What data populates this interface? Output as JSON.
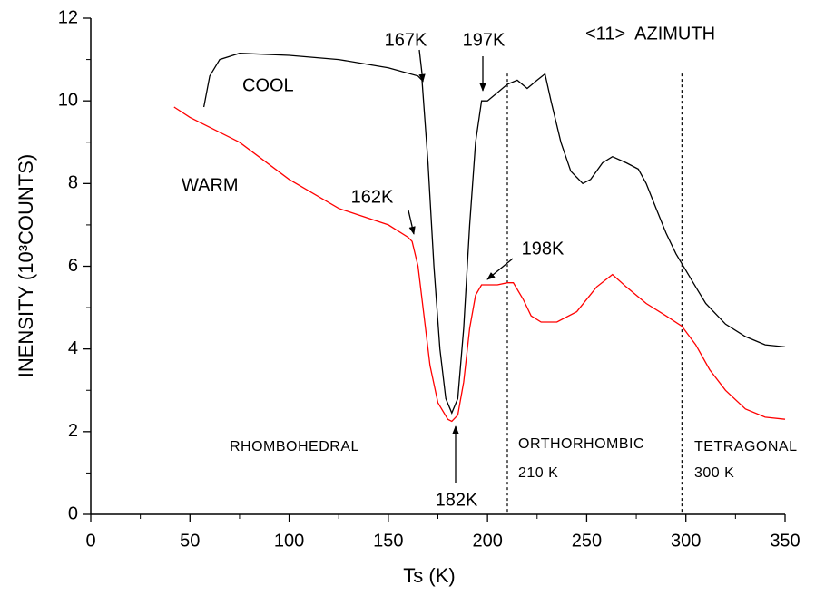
{
  "chart_data": {
    "type": "line",
    "x_label": "Ts (K)",
    "y_label": "INENSITY  (10³COUNTS)",
    "xlim": [
      0,
      350
    ],
    "xticks": [
      0,
      50,
      100,
      150,
      200,
      250,
      300,
      350
    ],
    "ylim": [
      0,
      12
    ],
    "yticks": [
      0,
      2,
      4,
      6,
      8,
      10,
      12
    ],
    "reference_lines": [
      210,
      298
    ],
    "series": [
      {
        "name": "COOL",
        "color": "#000000",
        "x": [
          57,
          60,
          65,
          75,
          100,
          125,
          150,
          165,
          167,
          170,
          173,
          176,
          179,
          182,
          185,
          188,
          191,
          194,
          197,
          200,
          205,
          210,
          215,
          220,
          225,
          229,
          232,
          237,
          242,
          248,
          252,
          258,
          263,
          270,
          276,
          280,
          285,
          290,
          295,
          300,
          305,
          310,
          320,
          330,
          340,
          350
        ],
        "values": [
          9.85,
          10.6,
          11.0,
          11.15,
          11.1,
          11.0,
          10.8,
          10.6,
          10.5,
          8.5,
          6.0,
          4.0,
          2.8,
          2.45,
          2.8,
          4.5,
          7.0,
          9.0,
          10.0,
          10.0,
          10.2,
          10.4,
          10.5,
          10.3,
          10.5,
          10.65,
          10.0,
          9.0,
          8.3,
          8.0,
          8.1,
          8.5,
          8.65,
          8.5,
          8.35,
          8.0,
          7.4,
          6.8,
          6.3,
          5.9,
          5.5,
          5.1,
          4.6,
          4.3,
          4.1,
          4.05
        ]
      },
      {
        "name": "WARM",
        "color": "#ff0000",
        "x": [
          42,
          50,
          75,
          100,
          125,
          150,
          160,
          162,
          165,
          168,
          171,
          175,
          180,
          182,
          185,
          188,
          191,
          194,
          197,
          200,
          205,
          210,
          213,
          218,
          222,
          227,
          235,
          245,
          255,
          263,
          270,
          280,
          290,
          298,
          305,
          312,
          320,
          330,
          340,
          350
        ],
        "values": [
          9.85,
          9.6,
          9.0,
          8.1,
          7.4,
          7.0,
          6.7,
          6.6,
          6.0,
          4.8,
          3.6,
          2.7,
          2.3,
          2.25,
          2.4,
          3.2,
          4.5,
          5.3,
          5.55,
          5.55,
          5.55,
          5.6,
          5.6,
          5.2,
          4.8,
          4.65,
          4.65,
          4.9,
          5.5,
          5.8,
          5.5,
          5.1,
          4.8,
          4.55,
          4.1,
          3.5,
          3.0,
          2.55,
          2.35,
          2.3
        ]
      }
    ],
    "annotations": [
      {
        "text": "167K",
        "color": "#000000"
      },
      {
        "text": "197K",
        "color": "#000000"
      },
      {
        "text": "<11>  AZIMUTH",
        "color": "#000000"
      },
      {
        "text": "162K",
        "color": "#ff0000"
      },
      {
        "text": "198K",
        "color": "#ff0000"
      },
      {
        "text": "182K",
        "color": "#000000"
      },
      {
        "text": "RHOMBOHEDRAL",
        "color": "#000000"
      },
      {
        "text": "ORTHORHOMBIC",
        "color": "#000000"
      },
      {
        "text": "210 K",
        "color": "#000000"
      },
      {
        "text": "TETRAGONAL",
        "color": "#000000"
      },
      {
        "text": "300 K",
        "color": "#000000"
      }
    ]
  }
}
